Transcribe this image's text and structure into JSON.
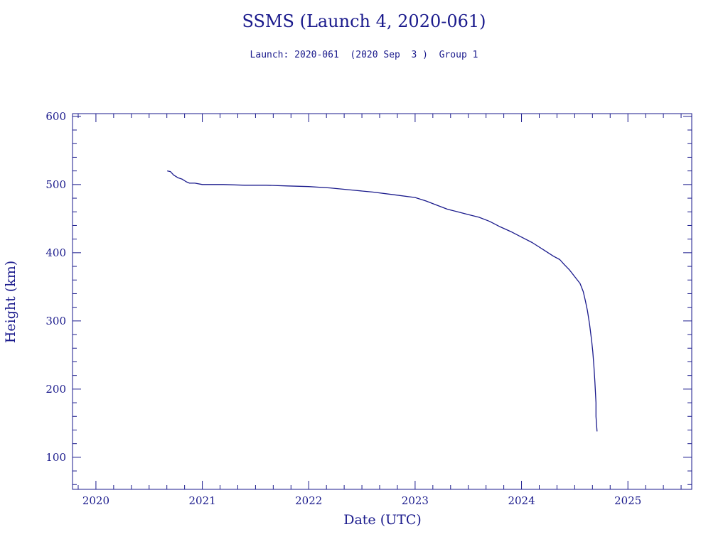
{
  "title": "SSMS (Launch 4, 2020-061)",
  "subtitle": "Launch: 2020-061  (2020 Sep  3 )  Group 1",
  "colors": {
    "ink": "#1a1a8c"
  },
  "chart_data": {
    "type": "line",
    "title": "SSMS (Launch 4, 2020-061)",
    "xlabel": "Date (UTC)",
    "ylabel": "Height (km)",
    "xlim": [
      2019.78,
      2025.6
    ],
    "ylim": [
      53,
      604
    ],
    "grid": false,
    "x_ticks": [
      "2020",
      "2021",
      "2022",
      "2023",
      "2024",
      "2025"
    ],
    "y_ticks": [
      "100",
      "200",
      "300",
      "400",
      "500",
      "600"
    ],
    "series": [
      {
        "x": [
          2020.67,
          2020.7,
          2020.73,
          2020.77,
          2020.81,
          2020.85,
          2020.88,
          2020.93,
          2021.0,
          2021.2,
          2021.4,
          2021.6,
          2021.8,
          2022.0,
          2022.2,
          2022.4,
          2022.6,
          2022.8,
          2023.0,
          2023.1,
          2023.2,
          2023.3,
          2023.4,
          2023.5,
          2023.6,
          2023.7,
          2023.8,
          2023.9,
          2024.0,
          2024.1,
          2024.2,
          2024.3,
          2024.36,
          2024.4,
          2024.45,
          2024.5,
          2024.55,
          2024.58,
          2024.6,
          2024.62,
          2024.64,
          2024.66,
          2024.67,
          2024.68,
          2024.69,
          2024.7,
          2024.7,
          2024.71
        ],
        "y": [
          520,
          519,
          514,
          510,
          508,
          504,
          502,
          502,
          500,
          500,
          499,
          499,
          498,
          497,
          495,
          492,
          489,
          485,
          481,
          476,
          470,
          464,
          460,
          456,
          452,
          446,
          438,
          431,
          423,
          415,
          405,
          395,
          390,
          383,
          375,
          365,
          355,
          343,
          330,
          315,
          295,
          270,
          255,
          235,
          210,
          180,
          160,
          138
        ]
      }
    ]
  }
}
